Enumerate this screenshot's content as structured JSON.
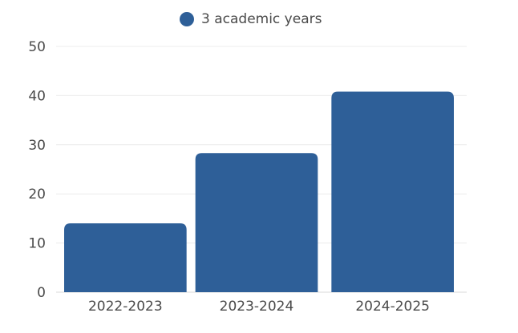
{
  "chart_data": {
    "type": "bar",
    "categories": [
      "2022-2023",
      "2023-2024",
      "2024-2025"
    ],
    "series": [
      {
        "name": "3 academic years",
        "values": [
          14,
          28.3,
          40.8
        ],
        "color": "#2e5f98"
      }
    ],
    "ylim": [
      0,
      50
    ],
    "yticks": [
      0,
      10,
      20,
      30,
      40,
      50
    ],
    "grid": true,
    "legend_position": "top-center",
    "title": "",
    "xlabel": "",
    "ylabel": ""
  }
}
